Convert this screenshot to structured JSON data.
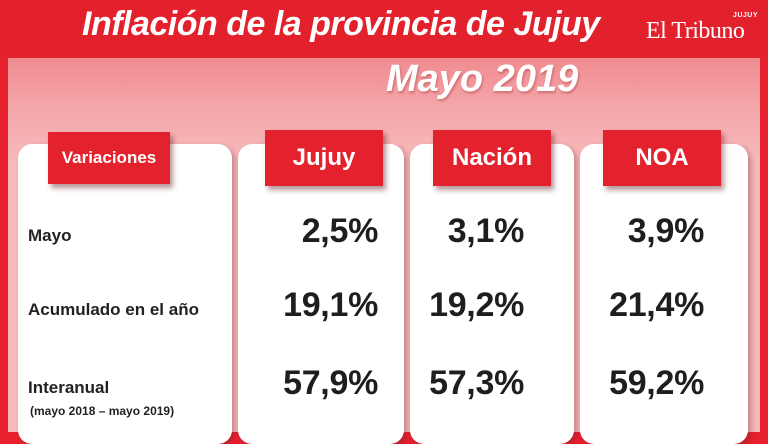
{
  "header": {
    "title": "Inflación de la provincia de Jujuy",
    "logo_small": "JUJUY",
    "logo": "El Tribuno"
  },
  "subtitle": "Mayo 2019",
  "colors": {
    "accent": "#e3212d",
    "panel": "#f7b9bb",
    "card": "#ffffff",
    "text": "#1e1e1e"
  },
  "chart_data": {
    "type": "table",
    "title": "Inflación de la provincia de Jujuy",
    "subtitle": "Mayo 2019",
    "columns": [
      "Variaciones",
      "Jujuy",
      "Nación",
      "NOA"
    ],
    "rows": [
      {
        "label": "Mayo",
        "note": "",
        "values": [
          "2,5%",
          "3,1%",
          "3,9%"
        ]
      },
      {
        "label": "Acumulado en el año",
        "note": "",
        "values": [
          "19,1%",
          "19,2%",
          "21,4%"
        ]
      },
      {
        "label": "Interanual",
        "note": "(mayo 2018 – mayo 2019)",
        "values": [
          "57,9%",
          "57,3%",
          "59,2%"
        ]
      }
    ],
    "series": [
      {
        "name": "Jujuy",
        "values": [
          2.5,
          19.1,
          57.9
        ]
      },
      {
        "name": "Nación",
        "values": [
          3.1,
          19.2,
          57.3
        ]
      },
      {
        "name": "NOA",
        "values": [
          3.9,
          21.4,
          59.2
        ]
      }
    ]
  }
}
